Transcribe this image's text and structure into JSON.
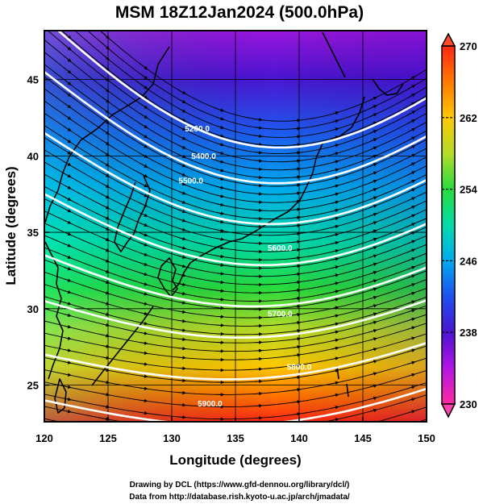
{
  "title": "MSM 18Z12Jan2024 (500.0hPa)",
  "map": {
    "xlabel": "Longitude (degrees)",
    "ylabel": "Latitude  (degrees)",
    "lon_range": [
      120,
      150
    ],
    "lat_range": [
      22.6,
      48.2
    ],
    "lon_ticks": [
      "120",
      "125",
      "130",
      "135",
      "140",
      "145",
      "150"
    ],
    "lat_ticks": [
      "25",
      "30",
      "35",
      "40",
      "45"
    ],
    "lon_tick_values": [
      120,
      125,
      130,
      135,
      140,
      145,
      150
    ],
    "lat_tick_values": [
      25,
      30,
      35,
      40,
      45
    ],
    "grid": true,
    "shaded_field": "temperature (K)",
    "contour_field": "geopotential height",
    "vector_field": "wind",
    "contour_labels": [
      "5200.0",
      "5400.0",
      "5500.0",
      "5600.0",
      "5700.0",
      "5800.0",
      "5900.0"
    ]
  },
  "colorbar": {
    "range": [
      230,
      270
    ],
    "ticks": [
      "270",
      "262",
      "254",
      "246",
      "238",
      "230"
    ],
    "tick_values": [
      270,
      262,
      254,
      246,
      238,
      230
    ],
    "colors": [
      "#ff2aa0",
      "#b414e6",
      "#4b14d2",
      "#1e50f0",
      "#00aaf0",
      "#00dcaa",
      "#28dc3c",
      "#b4dc28",
      "#ffc800",
      "#ff7800",
      "#ff2814"
    ]
  },
  "footer": {
    "line1": "Drawing by DCL (https://www.gfd-dennou.org/library/dcl/)",
    "line2": "Data from http://database.rish.kyoto-u.ac.jp/arch/jmadata/"
  }
}
